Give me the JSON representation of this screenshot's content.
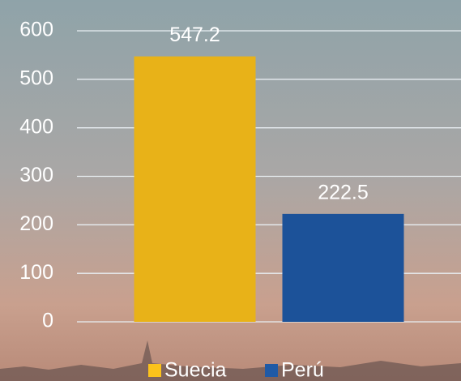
{
  "chart_data": {
    "type": "bar",
    "categories": [
      null
    ],
    "series": [
      {
        "name": "Suecia",
        "color": "#fcc21b",
        "values": [
          547.2
        ]
      },
      {
        "name": "Perú",
        "color": "#1f5aa6",
        "values": [
          222.5
        ]
      }
    ],
    "ylim": [
      0,
      600
    ],
    "yticks": [
      0,
      100,
      200,
      300,
      400,
      500,
      600
    ],
    "grid": true,
    "legend": "bottom"
  }
}
